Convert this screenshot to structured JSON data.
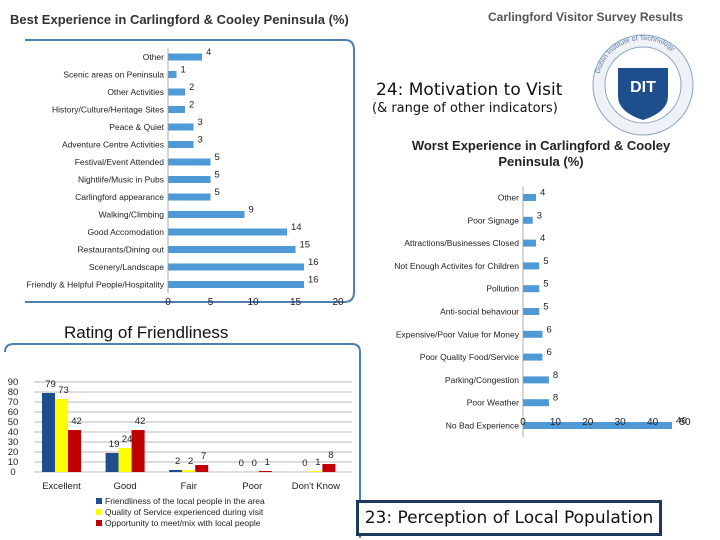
{
  "header": {
    "title": "Best Experience in Carlingford & Cooley Peninsula (%)",
    "survey_title": "Carlingford Visitor Survey Results",
    "logo_text": "DIT",
    "logo_ring_text": "Dublin Institute of Technology"
  },
  "motivation": {
    "title": "24: Motivation to Visit",
    "subtitle": "(& range of other indicators)"
  },
  "perception_box": "23: Perception of Local Population",
  "colors": {
    "bar_best": "#4f9ad6",
    "bar_worst": "#4f9ad6",
    "friendliness": "#1f4e8c",
    "quality": "#ffff00",
    "opportunity": "#c00000",
    "border": "#4f7fb0"
  },
  "chart_data": [
    {
      "type": "bar",
      "orientation": "horizontal",
      "title": "Best Experience in Carlingford & Cooley Peninsula (%)",
      "categories": [
        "Other",
        "Scenic areas on Peninsula",
        "Other Activities",
        "History/Culture/Heritage Sites",
        "Peace & Quiet",
        "Adventure Centre Activities",
        "Festival/Event Attended",
        "Nightlife/Music in Pubs",
        "Carlingford appearance",
        "Walking/Climbing",
        "Good Accomodation",
        "Restaurants/Dining out",
        "Scenery/Landscape",
        "Friendly & Helpful People/Hospitality"
      ],
      "values": [
        4,
        1,
        2,
        2,
        3,
        3,
        5,
        5,
        5,
        9,
        14,
        15,
        16,
        16
      ],
      "xlim": [
        0,
        20
      ],
      "ticks": [
        "0",
        "5",
        "10",
        "15",
        "20"
      ]
    },
    {
      "type": "bar",
      "orientation": "horizontal",
      "title": "Worst Experience in Carlingford & Cooley Peninsula (%)",
      "categories": [
        "Other",
        "Poor Signage",
        "Attractions/Businesses Closed",
        "Not Enough Activites for Children",
        "Pollution",
        "Anti-social behaviour",
        "Expensive/Poor Value for Money",
        "Poor Quality Food/Service",
        "Parking/Congestion",
        "Poor Weather",
        "No Bad Experience"
      ],
      "values": [
        4,
        3,
        4,
        5,
        5,
        5,
        6,
        6,
        8,
        8,
        46
      ],
      "xlim": [
        0,
        50
      ],
      "ticks": [
        "0",
        "10",
        "20",
        "30",
        "40",
        "50"
      ]
    },
    {
      "type": "bar",
      "title": "Rating of Friendliness",
      "categories": [
        "Excellent",
        "Good",
        "Fair",
        "Poor",
        "Don't Know"
      ],
      "series": [
        {
          "name": "Friendliness of the local people in the area",
          "values": [
            79,
            19,
            2,
            0,
            0
          ]
        },
        {
          "name": "Quality of Service experienced during visit",
          "values": [
            73,
            24,
            2,
            0,
            1
          ]
        },
        {
          "name": "Opportunity to meet/mix with local people",
          "values": [
            42,
            42,
            7,
            1,
            8
          ]
        }
      ],
      "ylim": [
        0,
        90
      ],
      "ticks": [
        "90",
        "80",
        "70",
        "60",
        "50",
        "40",
        "30",
        "20",
        "10",
        "0"
      ]
    }
  ]
}
